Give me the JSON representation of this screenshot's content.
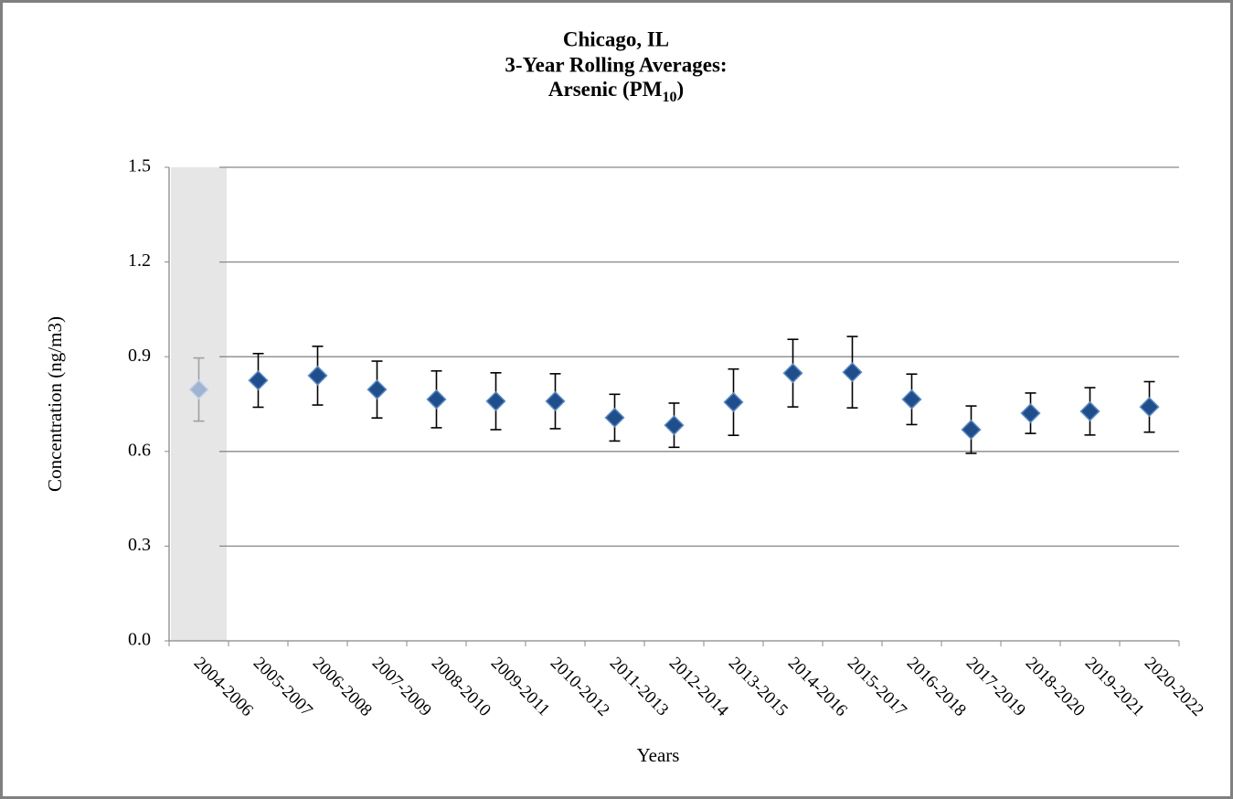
{
  "chart_data": {
    "type": "errorbar",
    "title": [
      "Chicago, IL",
      "3-Year Rolling Averages:",
      [
        "Arsenic (PM",
        "10",
        ")"
      ]
    ],
    "x_label": "Years",
    "y_label": "Concentration (ng/m3)",
    "categories": [
      "2004-2006",
      "2005-2007",
      "2006-2008",
      "2007-2009",
      "2008-2010",
      "2009-2011",
      "2010-2012",
      "2011-2013",
      "2012-2014",
      "2013-2015",
      "2014-2016",
      "2015-2017",
      "2016-2018",
      "2017-2019",
      "2018-2020",
      "2019-2021",
      "2020-2022"
    ],
    "values": [
      0.796,
      0.825,
      0.84,
      0.796,
      0.765,
      0.759,
      0.759,
      0.707,
      0.683,
      0.756,
      0.848,
      0.851,
      0.765,
      0.669,
      0.721,
      0.727,
      0.741
    ],
    "errors": [
      0.1,
      0.085,
      0.093,
      0.09,
      0.09,
      0.09,
      0.087,
      0.074,
      0.07,
      0.105,
      0.107,
      0.113,
      0.08,
      0.075,
      0.064,
      0.075,
      0.08
    ],
    "color": "#1f4e8c",
    "shaded_categories": [
      "2004-2006"
    ],
    "shaded_color": "#9fb4d2",
    "ylim": [
      0,
      1.5
    ],
    "yticks": [
      {
        "value": 0,
        "label": "0.0"
      },
      0.3,
      0.6,
      0.9,
      1.2,
      1.5
    ],
    "grid": true
  }
}
